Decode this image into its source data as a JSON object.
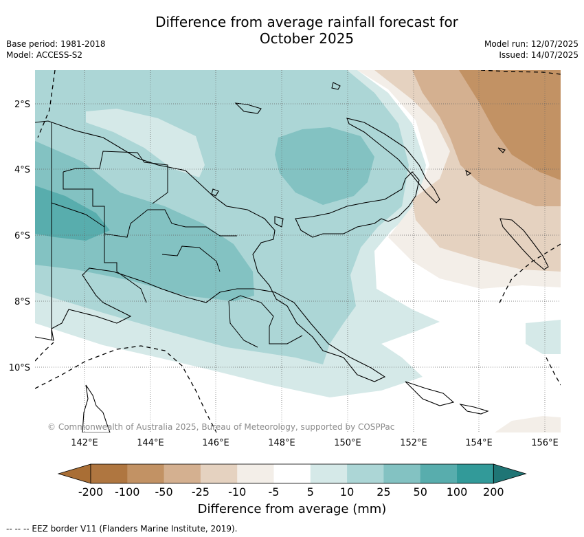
{
  "header": {
    "title_line1": "Difference from average rainfall forecast for",
    "title_line2": "October 2025",
    "base_period": "Base period: 1981-2018",
    "model": "Model: ACCESS-S2",
    "model_run": "Model run: 12/07/2025",
    "issued": "Issued: 14/07/2025"
  },
  "map": {
    "latitude_labels": [
      "2°S",
      "4°S",
      "6°S",
      "8°S",
      "10°S"
    ],
    "longitude_labels": [
      "142°E",
      "144°E",
      "146°E",
      "148°E",
      "150°E",
      "152°E",
      "154°E",
      "156°E"
    ],
    "copyright": "© Commonwealth of Australia 2025, Bureau of Meteorology, supported by COSPPac",
    "colors": {
      "wet_5_10": "#d5e9e8",
      "wet_10_25": "#acd6d6",
      "wet_25_50": "#83c2c2",
      "wet_50_100": "#58adad",
      "dry_m5_m10": "#f3eee8",
      "dry_m10_m25": "#e5d2c0",
      "dry_m25_m50": "#d4b090",
      "dry_m50_m100": "#c29264"
    }
  },
  "colorbar": {
    "ticks": [
      "-200",
      "-100",
      "-50",
      "-25",
      "-10",
      "-5",
      "5",
      "10",
      "25",
      "50",
      "100",
      "200"
    ],
    "colors": [
      "#a96e35",
      "#af7640",
      "#c29264",
      "#d4b090",
      "#e5d2c0",
      "#f3eee8",
      "#ffffff",
      "#d5e9e8",
      "#acd6d6",
      "#83c2c2",
      "#58adad",
      "#329a99",
      "#1f7575"
    ],
    "label": "Difference from average (mm)"
  },
  "footer": {
    "eez_note": "--  --  -- EEZ border V11 (Flanders Marine Institute, 2019)."
  }
}
